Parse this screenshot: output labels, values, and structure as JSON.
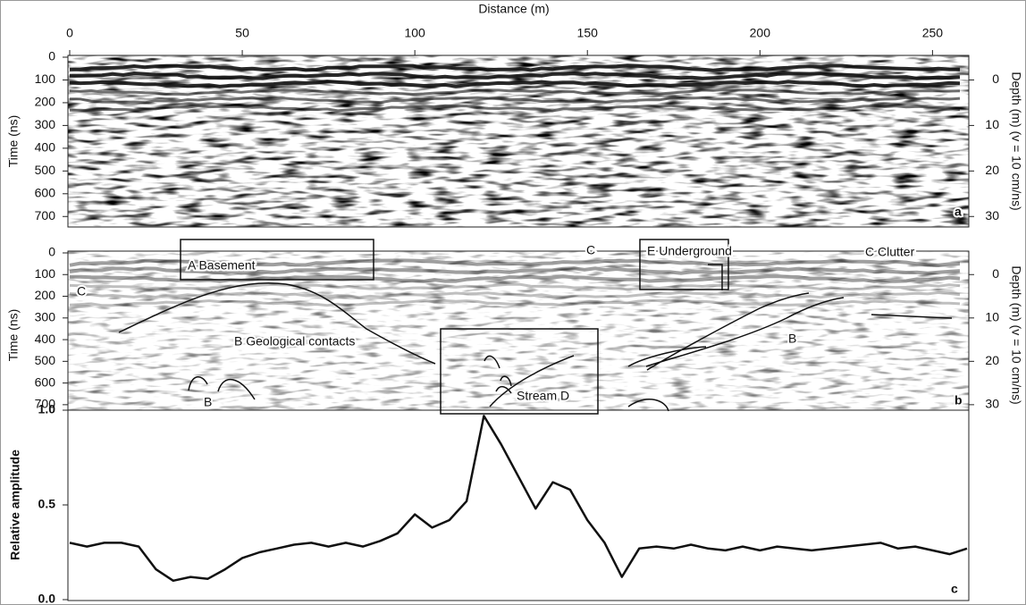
{
  "chart_data": [
    {
      "type": "radargram",
      "xlabel": "Distance (m)",
      "ylabel": "Time (ns)",
      "y2label": "Depth (m) (v = 10 cm/ns)",
      "panel_label": "a",
      "xlim": [
        0,
        260
      ],
      "xticks": [
        0,
        50,
        100,
        150,
        200,
        250
      ],
      "ylim": [
        0,
        750
      ],
      "yticks": [
        0,
        100,
        200,
        300,
        400,
        500,
        600,
        700
      ],
      "y2lim": [
        -5,
        32.5
      ],
      "y2ticks": [
        0,
        10,
        20,
        30
      ]
    },
    {
      "type": "radargram",
      "ylabel": "Time (ns)",
      "y2label": "Depth (m) (v = 10 cm/ns)",
      "panel_label": "b",
      "ylim": [
        0,
        750
      ],
      "yticks": [
        0,
        100,
        200,
        300,
        400,
        500,
        600,
        700
      ],
      "y2lim": [
        -5,
        32.5
      ],
      "y2ticks": [
        0,
        10,
        20,
        30
      ],
      "annotations": [
        "A  Basement",
        "B Geological contacts",
        "C",
        "E Underground",
        "C Clutter",
        "C",
        "B",
        "Stream D",
        "B"
      ]
    },
    {
      "type": "line",
      "ylabel": "Relative amplitude",
      "panel_label": "c",
      "color": "#111111",
      "xlim": [
        0,
        260
      ],
      "ylim": [
        0,
        1
      ],
      "yticks": [
        {
          "value": 0,
          "label": "0.0"
        },
        {
          "value": 0.5,
          "label": "0.5"
        },
        {
          "value": 1,
          "label": "1.0"
        }
      ],
      "x": [
        0,
        5,
        10,
        15,
        20,
        25,
        30,
        35,
        40,
        45,
        50,
        55,
        60,
        65,
        70,
        75,
        80,
        85,
        90,
        95,
        100,
        105,
        110,
        115,
        120,
        125,
        130,
        135,
        140,
        145,
        150,
        155,
        160,
        165,
        170,
        175,
        180,
        185,
        190,
        195,
        200,
        205,
        210,
        215,
        220,
        225,
        230,
        235,
        240,
        245,
        250,
        255,
        260
      ],
      "values": [
        0.3,
        0.28,
        0.3,
        0.3,
        0.28,
        0.16,
        0.1,
        0.12,
        0.11,
        0.16,
        0.22,
        0.25,
        0.27,
        0.29,
        0.3,
        0.28,
        0.3,
        0.28,
        0.31,
        0.35,
        0.45,
        0.38,
        0.42,
        0.52,
        0.97,
        0.82,
        0.65,
        0.48,
        0.62,
        0.58,
        0.42,
        0.3,
        0.12,
        0.27,
        0.28,
        0.27,
        0.29,
        0.27,
        0.26,
        0.28,
        0.26,
        0.28,
        0.27,
        0.26,
        0.27,
        0.28,
        0.29,
        0.3,
        0.27,
        0.28,
        0.26,
        0.24,
        0.27
      ]
    }
  ]
}
